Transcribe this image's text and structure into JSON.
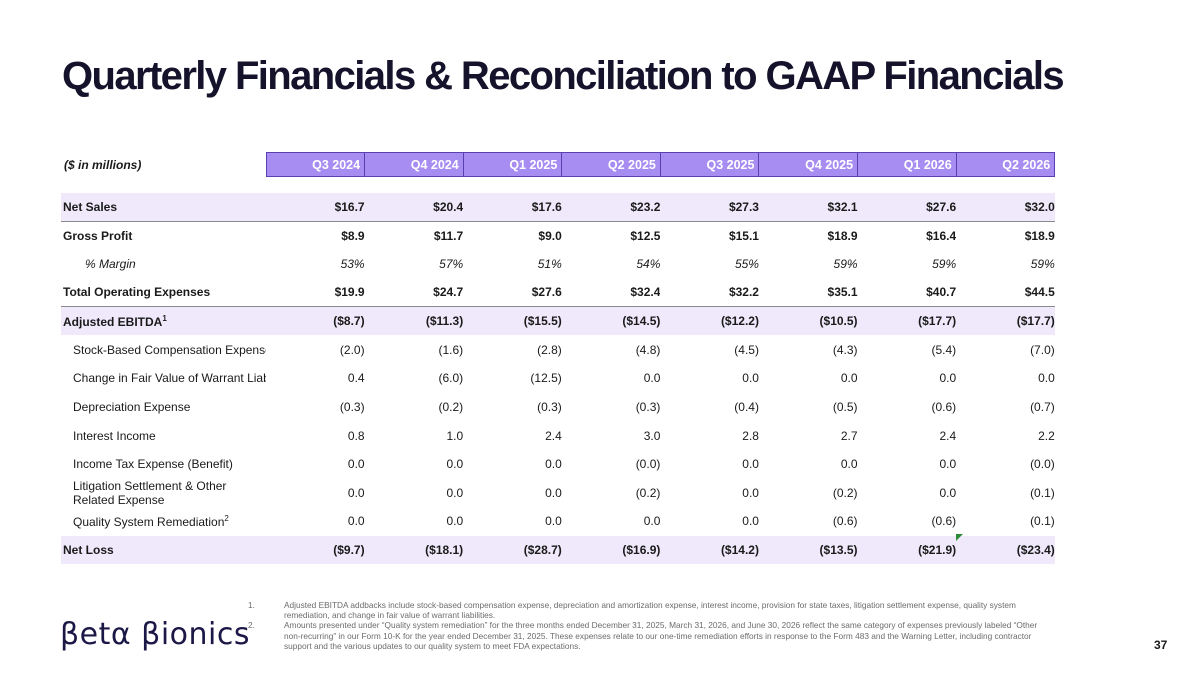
{
  "title": "Quarterly Financials & Reconciliation to GAAP Financials",
  "units_label": "($ in millions)",
  "quarters": [
    "Q3 2024",
    "Q4 2024",
    "Q1 2025",
    "Q2 2025",
    "Q3 2025",
    "Q4 2025",
    "Q1 2026",
    "Q2 2026"
  ],
  "rows": [
    {
      "label": "Net Sales",
      "values": [
        "$16.7",
        "$20.4",
        "$17.6",
        "$23.2",
        "$27.3",
        "$32.1",
        "$27.6",
        "$32.0"
      ]
    },
    {
      "label": "Gross Profit",
      "values": [
        "$8.9",
        "$11.7",
        "$9.0",
        "$12.5",
        "$15.1",
        "$18.9",
        "$16.4",
        "$18.9"
      ]
    },
    {
      "label": "% Margin",
      "values": [
        "53%",
        "57%",
        "51%",
        "54%",
        "55%",
        "59%",
        "59%",
        "59%"
      ]
    },
    {
      "label": "Total Operating Expenses",
      "values": [
        "$19.9",
        "$24.7",
        "$27.6",
        "$32.4",
        "$32.2",
        "$35.1",
        "$40.7",
        "$44.5"
      ]
    },
    {
      "label": "Adjusted EBITDA",
      "sup": "1",
      "values": [
        "($8.7)",
        "($11.3)",
        "($15.5)",
        "($14.5)",
        "($12.2)",
        "($10.5)",
        "($17.7)",
        "($17.7)"
      ]
    },
    {
      "label": "Stock-Based Compensation Expense",
      "values": [
        "(2.0)",
        "(1.6)",
        "(2.8)",
        "(4.8)",
        "(4.5)",
        "(4.3)",
        "(5.4)",
        "(7.0)"
      ]
    },
    {
      "label": "Change in Fair Value of Warrant Liabilit",
      "values": [
        "0.4",
        "(6.0)",
        "(12.5)",
        "0.0",
        "0.0",
        "0.0",
        "0.0",
        "0.0"
      ]
    },
    {
      "label": "Depreciation Expense",
      "values": [
        "(0.3)",
        "(0.2)",
        "(0.3)",
        "(0.3)",
        "(0.4)",
        "(0.5)",
        "(0.6)",
        "(0.7)"
      ]
    },
    {
      "label": "Interest Income",
      "values": [
        "0.8",
        "1.0",
        "2.4",
        "3.0",
        "2.8",
        "2.7",
        "2.4",
        "2.2"
      ]
    },
    {
      "label": "Income Tax Expense (Benefit)",
      "values": [
        "0.0",
        "0.0",
        "0.0",
        "(0.0)",
        "0.0",
        "0.0",
        "0.0",
        "(0.0)"
      ]
    },
    {
      "label": "Litigation Settlement & Other Related Expense",
      "values": [
        "0.0",
        "0.0",
        "0.0",
        "(0.2)",
        "0.0",
        "(0.2)",
        "0.0",
        "(0.1)"
      ]
    },
    {
      "label": "Quality System Remediation",
      "sup": "2",
      "values": [
        "0.0",
        "0.0",
        "0.0",
        "0.0",
        "0.0",
        "(0.6)",
        "(0.6)",
        "(0.1)"
      ]
    },
    {
      "label": "Net Loss",
      "values": [
        "($9.7)",
        "($18.1)",
        "($28.7)",
        "($16.9)",
        "($14.2)",
        "($13.5)",
        "($21.9)",
        "($23.4)"
      ]
    }
  ],
  "footnotes": [
    {
      "num": "1.",
      "text": "Adjusted EBITDA addbacks include stock-based compensation expense, depreciation and amortization expense, interest income, provision for state taxes, litigation settlement expense, quality system remediation, and change in fair value of warrant liabilities."
    },
    {
      "num": "2.",
      "text": "Amounts presented under “Quality system remediation” for the three months ended December 31, 2025, March 31, 2026, and June 30, 2026 reflect the same category of expenses previously labeled “Other non-recurring” in our Form 10-K for the year ended December 31, 2025. These expenses relate to our one-time remediation efforts in response to the Form 483 and the Warning Letter, including contractor support and the various updates to our quality system to meet FDA expectations."
    }
  ],
  "logo_text": "βetα βionics",
  "page_number": "37",
  "colors": {
    "header_fill": "#a78cf2",
    "row_shade": "#efe9fb",
    "title": "#15122b",
    "logo": "#1b1746"
  }
}
